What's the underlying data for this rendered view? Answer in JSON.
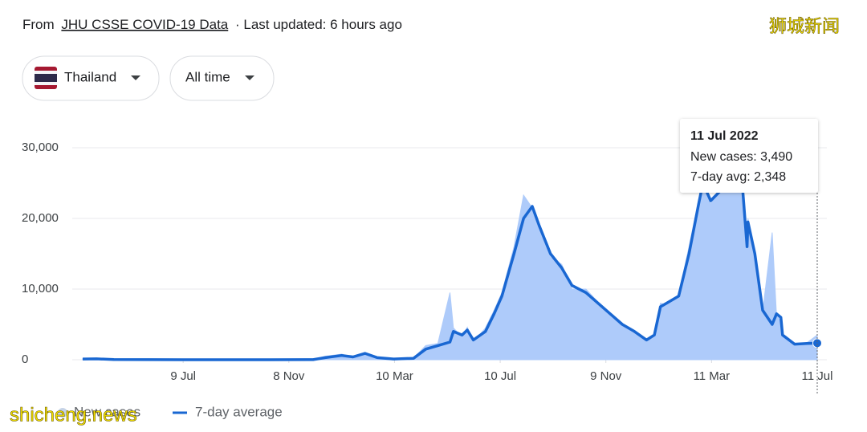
{
  "header": {
    "source_prefix": "From",
    "source_link": "JHU CSSE COVID-19 Data",
    "updated": "· Last updated: 6 hours ago"
  },
  "controls": {
    "region": "Thailand",
    "period": "All time"
  },
  "watermarks": [
    "狮城新闻",
    "shicheng.news"
  ],
  "chart_data": {
    "type": "line",
    "x": [
      -116,
      -100,
      -80,
      -40,
      0,
      100,
      150,
      164,
      183,
      196,
      210,
      224,
      243,
      266,
      280,
      294,
      308,
      312,
      322,
      328,
      335,
      349,
      359,
      368,
      382,
      393,
      403,
      411,
      424,
      437,
      449,
      465,
      493,
      507,
      521,
      535,
      544,
      551,
      558,
      572,
      584,
      595,
      600,
      609,
      621,
      637,
      646,
      651,
      652,
      660,
      669,
      680,
      685,
      690,
      692,
      706,
      720,
      732
    ],
    "series": [
      {
        "name": "New cases",
        "color": "#aecbfa",
        "legend_color": "#c6d3e6",
        "area": true,
        "values": [
          150,
          180,
          30,
          15,
          8,
          5,
          15,
          500,
          800,
          350,
          1000,
          250,
          90,
          250,
          2000,
          2300,
          9500,
          4500,
          3200,
          4600,
          2500,
          4500,
          7000,
          9500,
          16000,
          23300,
          21500,
          18500,
          14500,
          13500,
          10000,
          10000,
          6300,
          4800,
          3800,
          2600,
          3600,
          8000,
          7800,
          9200,
          16000,
          22500,
          25500,
          22000,
          24500,
          26500,
          23500,
          16500,
          20000,
          14500,
          6800,
          18000,
          6200,
          5800,
          3300,
          2100,
          2400,
          3490
        ]
      },
      {
        "name": "7-day average",
        "color": "#1967d2",
        "area": false,
        "values": [
          100,
          120,
          20,
          10,
          5,
          5,
          10,
          300,
          600,
          400,
          900,
          300,
          100,
          200,
          1500,
          2000,
          2500,
          4000,
          3500,
          4200,
          2800,
          4000,
          6500,
          9000,
          15000,
          20000,
          21700,
          19000,
          15000,
          13000,
          10500,
          9500,
          6500,
          5000,
          4000,
          2800,
          3500,
          7500,
          8000,
          9000,
          15000,
          22000,
          25000,
          22500,
          24000,
          26000,
          24000,
          16000,
          19500,
          15000,
          7000,
          5000,
          6500,
          6000,
          3500,
          2200,
          2300,
          2348
        ]
      }
    ],
    "xlim": [
      -116,
      732
    ],
    "xticks": [
      {
        "value": 0,
        "label": "9 Jul"
      },
      {
        "value": 122,
        "label": "8 Nov"
      },
      {
        "value": 244,
        "label": "10 Mar"
      },
      {
        "value": 366,
        "label": "10 Jul"
      },
      {
        "value": 488,
        "label": "9 Nov"
      },
      {
        "value": 610,
        "label": "11 Mar"
      },
      {
        "value": 732,
        "label": "11 Jul"
      }
    ],
    "ylim": [
      0,
      33000
    ],
    "yticks": [
      0,
      {
        "value": 10000,
        "label": "10,000"
      },
      {
        "value": 20000,
        "label": "20,000"
      },
      {
        "value": 30000,
        "label": "30,000"
      }
    ],
    "grid": true,
    "tooltip": {
      "title": "11 Jul 2022",
      "lines": [
        "New cases: 3,490",
        "7-day avg: 2,348"
      ]
    }
  }
}
